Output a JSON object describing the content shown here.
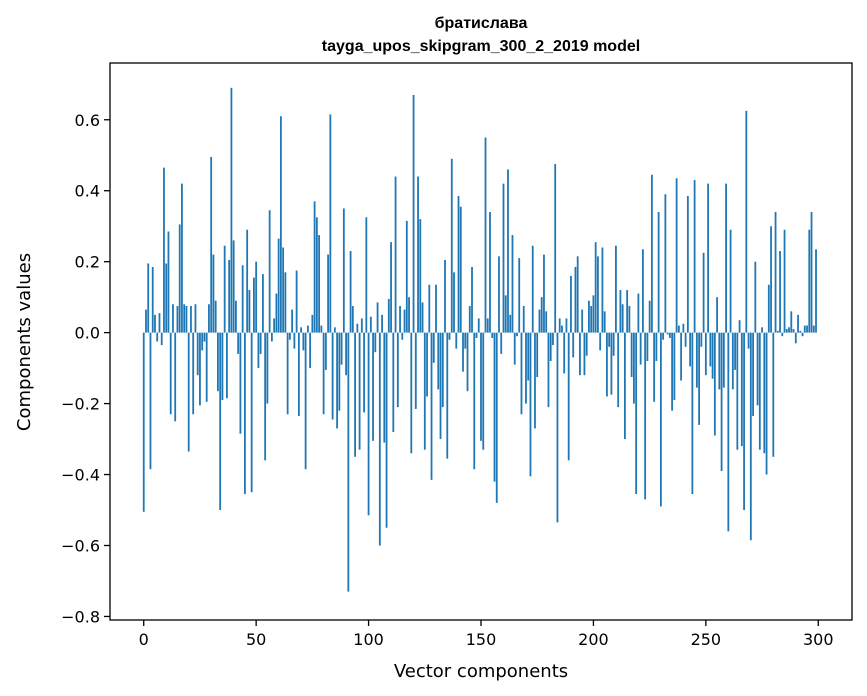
{
  "chart_data": {
    "type": "bar",
    "title": "братислава",
    "subtitle": "tayga_upos_skipgram_300_2_2019 model",
    "xlabel": "Vector components",
    "ylabel": "Components values",
    "xlim": [
      -15,
      315
    ],
    "ylim": [
      -0.81,
      0.76
    ],
    "xticks": [
      0,
      50,
      100,
      150,
      200,
      250,
      300
    ],
    "yticks": [
      -0.8,
      -0.6,
      -0.4,
      -0.2,
      0.0,
      0.2,
      0.4,
      0.6
    ],
    "ytick_labels": [
      "−0.8",
      "−0.6",
      "−0.4",
      "−0.2",
      "0.0",
      "0.2",
      "0.4",
      "0.6"
    ],
    "bar_color": "#1f77b4",
    "grid": false,
    "x": "0..299",
    "values": [
      -0.505,
      0.065,
      0.195,
      -0.385,
      0.185,
      0.05,
      -0.025,
      0.055,
      -0.035,
      0.465,
      0.195,
      0.285,
      -0.23,
      0.08,
      -0.25,
      0.075,
      0.305,
      0.42,
      0.08,
      0.075,
      -0.335,
      0.075,
      -0.23,
      0.08,
      -0.12,
      -0.205,
      -0.05,
      -0.025,
      -0.195,
      0.08,
      0.495,
      0.22,
      0.09,
      -0.165,
      -0.5,
      -0.19,
      0.245,
      -0.185,
      0.205,
      0.69,
      0.26,
      0.09,
      -0.06,
      -0.285,
      0.19,
      -0.455,
      0.29,
      0.12,
      -0.45,
      0.155,
      0.2,
      -0.1,
      -0.06,
      0.165,
      -0.36,
      -0.2,
      0.345,
      -0.025,
      0.04,
      0.11,
      0.265,
      0.61,
      0.24,
      0.17,
      -0.23,
      -0.02,
      0.065,
      -0.045,
      0.175,
      -0.235,
      0.015,
      -0.05,
      -0.385,
      0.02,
      -0.1,
      0.05,
      0.37,
      0.325,
      0.275,
      0.02,
      -0.23,
      -0.105,
      0.22,
      0.615,
      -0.245,
      0.015,
      -0.27,
      -0.22,
      -0.09,
      0.35,
      -0.12,
      -0.73,
      0.23,
      0.075,
      -0.35,
      0.025,
      -0.33,
      0.04,
      -0.225,
      0.325,
      -0.515,
      0.045,
      -0.305,
      -0.055,
      0.085,
      -0.6,
      0.05,
      -0.31,
      -0.55,
      0.095,
      0.255,
      -0.28,
      0.44,
      -0.21,
      0.075,
      -0.02,
      0.065,
      0.315,
      0.1,
      -0.34,
      0.67,
      -0.215,
      0.44,
      0.32,
      0.085,
      -0.33,
      -0.18,
      0.135,
      -0.415,
      -0.085,
      0.135,
      -0.16,
      -0.3,
      -0.21,
      0.205,
      -0.355,
      -0.02,
      0.49,
      0.17,
      -0.045,
      0.385,
      0.355,
      -0.11,
      -0.045,
      -0.165,
      0.075,
      0.185,
      -0.385,
      -0.015,
      0.04,
      -0.305,
      -0.33,
      0.55,
      0.04,
      0.34,
      -0.015,
      -0.42,
      -0.48,
      0.215,
      -0.06,
      0.42,
      0.105,
      0.46,
      0.05,
      0.275,
      -0.09,
      -0.01,
      0.21,
      -0.23,
      0.075,
      -0.2,
      -0.135,
      -0.405,
      0.245,
      -0.27,
      -0.125,
      0.065,
      0.1,
      0.22,
      0.06,
      -0.21,
      -0.08,
      -0.035,
      0.475,
      -0.535,
      0.04,
      0.02,
      -0.115,
      0.04,
      -0.36,
      0.16,
      -0.07,
      0.185,
      0.215,
      -0.12,
      0.065,
      -0.12,
      -0.065,
      0.09,
      0.075,
      0.105,
      0.255,
      0.215,
      -0.05,
      0.24,
      0.06,
      -0.18,
      -0.04,
      -0.175,
      -0.065,
      0.245,
      -0.21,
      0.12,
      0.08,
      -0.3,
      0.12,
      0.075,
      -0.125,
      -0.2,
      -0.455,
      0.11,
      -0.09,
      0.235,
      -0.47,
      -0.08,
      0.09,
      0.445,
      -0.195,
      -0.08,
      0.34,
      -0.49,
      -0.02,
      0.39,
      -0.005,
      -0.015,
      -0.22,
      -0.19,
      0.435,
      0.02,
      -0.135,
      0.025,
      -0.04,
      0.385,
      -0.095,
      -0.455,
      0.43,
      -0.155,
      -0.26,
      -0.04,
      0.225,
      -0.12,
      0.42,
      -0.095,
      -0.13,
      -0.29,
      0.1,
      -0.16,
      -0.39,
      -0.155,
      0.42,
      -0.56,
      0.29,
      -0.16,
      -0.105,
      -0.33,
      0.035,
      -0.32,
      -0.5,
      0.625,
      -0.045,
      -0.585,
      -0.235,
      0.2,
      -0.205,
      -0.33,
      0.015,
      -0.34,
      -0.4,
      0.135,
      0.3,
      -0.35,
      0.34,
      0.005,
      0.23,
      -0.01,
      0.29,
      0.01,
      0.015,
      0.06,
      0.01,
      -0.03,
      0.05,
      0.005,
      -0.01,
      0.02,
      0.02,
      0.29,
      0.34,
      0.02,
      0.235
    ]
  }
}
